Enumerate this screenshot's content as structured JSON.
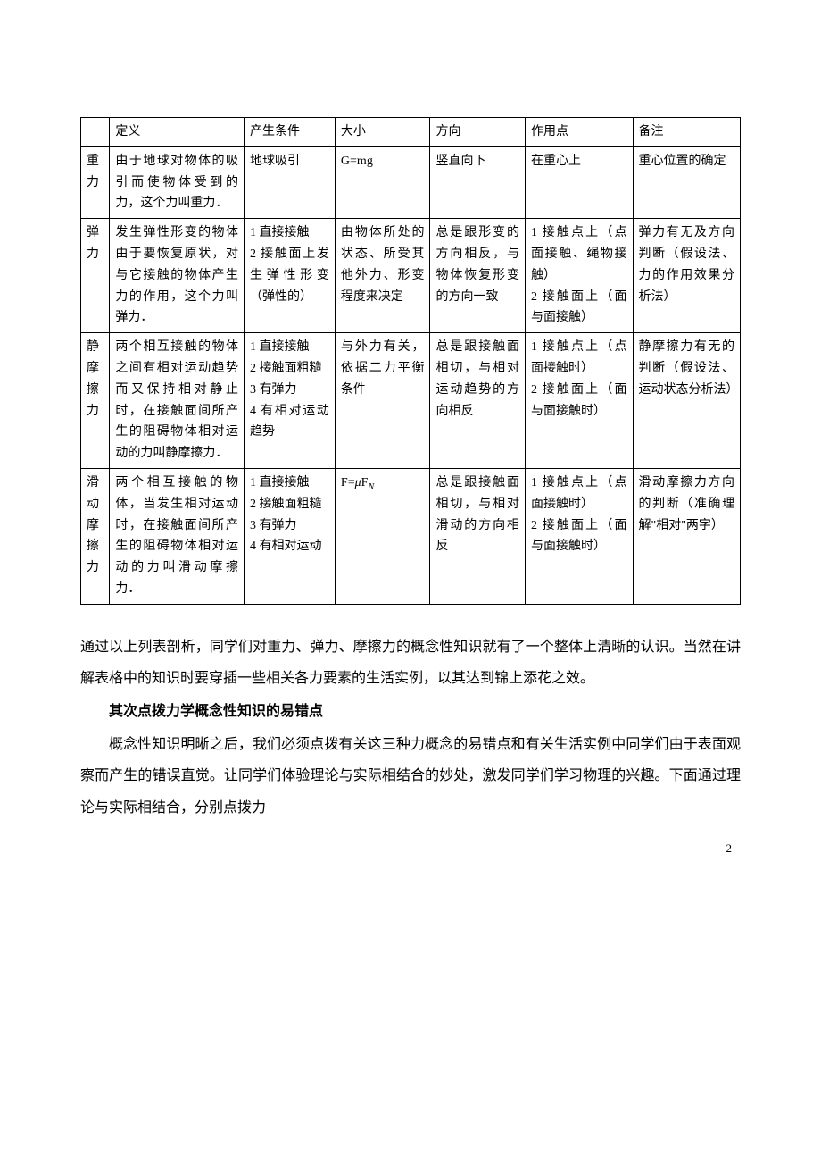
{
  "table": {
    "headers": [
      "",
      "定义",
      "产生条件",
      "大小",
      "方向",
      "作用点",
      "备注"
    ],
    "rows": [
      {
        "name": "重力",
        "definition": "由于地球对物体的吸引而使物体受到的力，这个力叫重力．",
        "condition": "地球吸引",
        "magnitude": "G=mg",
        "direction": "竖直向下",
        "point": "在重心上",
        "note": "重心位置的确定"
      },
      {
        "name": "弹力",
        "definition": "发生弹性形变的物体由于要恢复原状，对与它接触的物体产生力的作用，这个力叫弹力．",
        "condition": "1 直接接触\n2 接触面上发生弹性形变（弹性的）",
        "magnitude": "由物体所处的状态、所受其他外力、形变程度来决定",
        "direction": "总是跟形变的方向相反，与物体恢复形变的方向一致",
        "point": "1 接触点上（点面接触、绳物接触）\n2 接触面上（面与面接触）",
        "note": "弹力有无及方向判断（假设法、力的作用效果分析法）"
      },
      {
        "name": "静摩擦力",
        "definition": "两个相互接触的物体之间有相对运动趋势而又保持相对静止时，在接触面间所产生的阻碍物体相对运动的力叫静摩擦力．",
        "condition": "1 直接接触\n2 接触面粗糙\n3 有弹力\n4 有相对运动趋势",
        "magnitude": "与外力有关，依据二力平衡条件",
        "direction": "总是跟接触面相切，与相对运动趋势的方向相反",
        "point": "1 接触点上（点面接触时）\n2 接触面上（面与面接触时）",
        "note": "静摩擦力有无的判断（假设法、运动状态分析法）"
      },
      {
        "name": "滑动摩擦力",
        "definition": "两个相互接触的物体，当发生相对运动时，在接触面间所产生的阻碍物体相对运动的力叫滑动摩擦力．",
        "condition": "1 直接接触\n2 接触面粗糙\n3 有弹力\n4 有相对运动",
        "magnitude_formula": {
          "prefix": "F=",
          "mu": "μ",
          "F": "F",
          "sub": "N"
        },
        "direction": "总是跟接触面相切，与相对滑动的方向相反",
        "point": "1 接触点上（点面接触时）\n2 接触面上（面与面接触时）",
        "note": "滑动摩擦力方向的判断（准确理解\"相对\"两字）"
      }
    ]
  },
  "paragraphs": {
    "p1": "通过以上列表剖析，同学们对重力、弹力、摩擦力的概念性知识就有了一个整体上清晰的认识。当然在讲解表格中的知识时要穿插一些相关各力要素的生活实例，以其达到锦上添花之效。",
    "h2": "其次点拨力学概念性知识的易错点",
    "p2": "概念性知识明晰之后，我们必须点拨有关这三种力概念的易错点和有关生活实例中同学们由于表面观察而产生的错误直觉。让同学们体验理论与实际相结合的妙处，激发同学们学习物理的兴趣。下面通过理论与实际相结合，分别点拨力"
  },
  "pageNumber": "2"
}
